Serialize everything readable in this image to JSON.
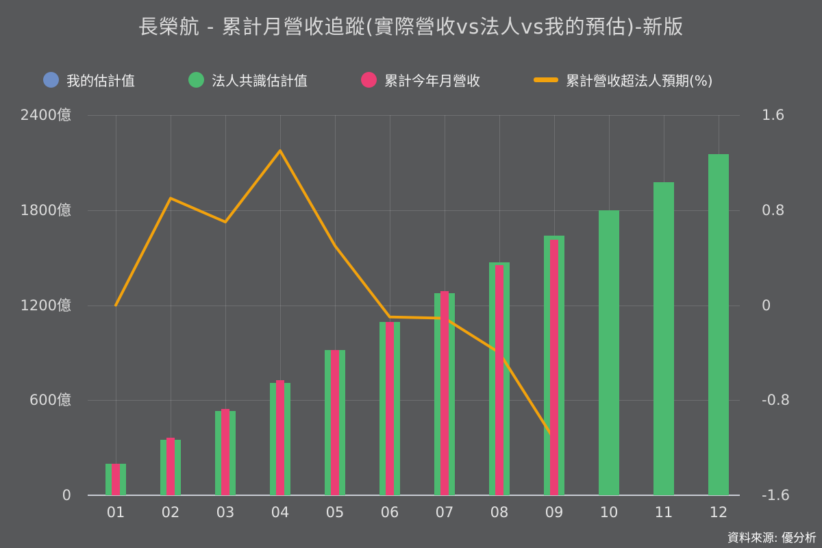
{
  "title": "長榮航 - 累計月營收追蹤(實際營收vs法人vs我的預估)-新版",
  "source": "資料來源: 優分析",
  "colors": {
    "background": "#57585a",
    "my_estimate_blue": "#6e8ec6",
    "consensus_green": "#4cba70",
    "actual_pink": "#ec3e74",
    "surprise_orange": "#f2a20d",
    "grid": "rgba(255,255,255,0.14)",
    "axis_line": "#c9ccd4",
    "text": "#d9d9d9"
  },
  "legend": {
    "items": [
      {
        "label": "我的估計值",
        "color": "#6e8ec6",
        "marker": "dot"
      },
      {
        "label": "法人共識估計值",
        "color": "#4cba70",
        "marker": "dot"
      },
      {
        "label": "累計今年月營收",
        "color": "#ec3e74",
        "marker": "dot"
      },
      {
        "label": "累計營收超法人預期(%)",
        "color": "#f2a20d",
        "marker": "line"
      }
    ]
  },
  "chart_data": {
    "type": "bar",
    "subtype": "bar+line combo, dual axis",
    "categories": [
      "01",
      "02",
      "03",
      "04",
      "05",
      "06",
      "07",
      "08",
      "09",
      "10",
      "11",
      "12"
    ],
    "series": [
      {
        "name": "法人共識估計值",
        "type": "bar",
        "axis": "left",
        "color": "#4cba70",
        "values": [
          200,
          350,
          530,
          710,
          915,
          1095,
          1275,
          1470,
          1640,
          1800,
          1975,
          2155
        ]
      },
      {
        "name": "累計今年月營收",
        "type": "bar",
        "axis": "left",
        "color": "#ec3e74",
        "values": [
          200,
          365,
          545,
          725,
          915,
          1095,
          1290,
          1455,
          1615,
          null,
          null,
          null
        ]
      },
      {
        "name": "累計營收超法人預期(%)",
        "type": "line",
        "axis": "right",
        "color": "#f2a20d",
        "values": [
          0.0,
          0.9,
          0.7,
          1.3,
          0.5,
          -0.1,
          -0.11,
          -0.4,
          -1.13,
          null,
          null,
          null
        ]
      }
    ],
    "left_axis": {
      "unit": "億",
      "min": 0,
      "max": 2400,
      "ticks": [
        {
          "label": "0",
          "value": 0
        },
        {
          "label": "600億",
          "value": 600
        },
        {
          "label": "1200億",
          "value": 1200
        },
        {
          "label": "1800億",
          "value": 1800
        },
        {
          "label": "2400億",
          "value": 2400
        }
      ]
    },
    "right_axis": {
      "unit": "%",
      "min": -1.6,
      "max": 1.6,
      "ticks": [
        {
          "label": "-1.6",
          "value": -1.6
        },
        {
          "label": "-0.8",
          "value": -0.8
        },
        {
          "label": "0",
          "value": 0
        },
        {
          "label": "0.8",
          "value": 0.8
        },
        {
          "label": "1.6",
          "value": 1.6
        }
      ]
    },
    "grid": true,
    "legend_position": "top"
  }
}
